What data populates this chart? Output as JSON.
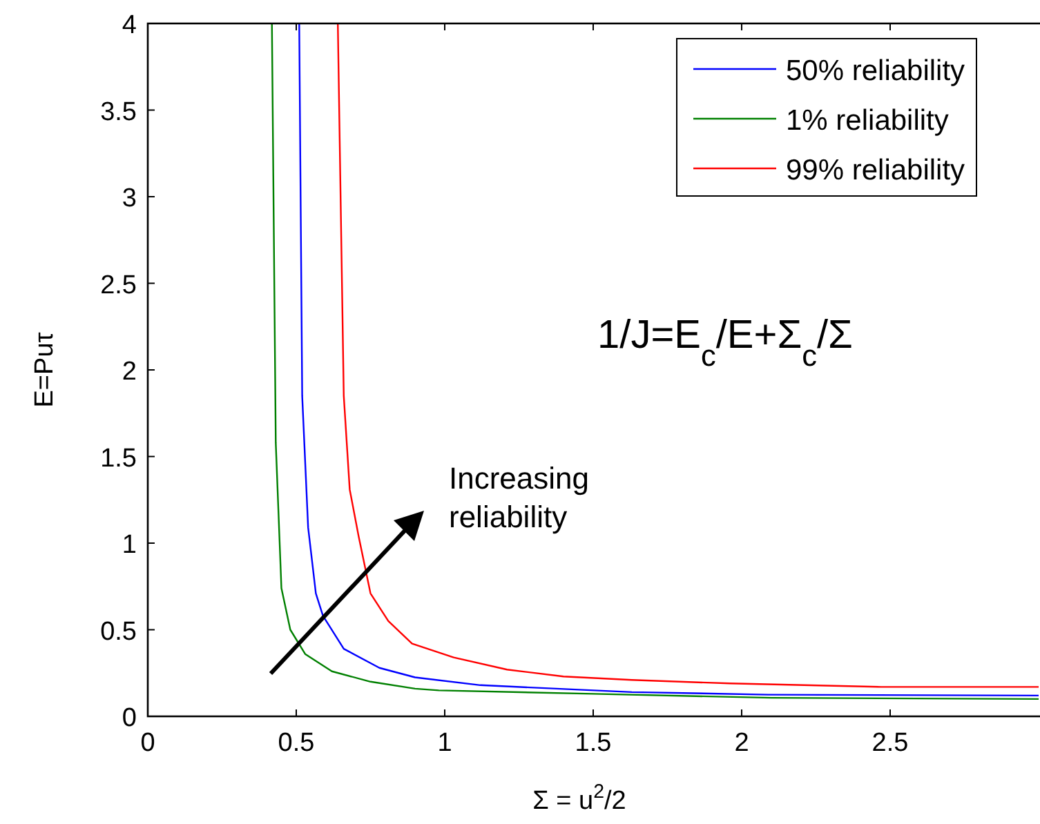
{
  "chart_data": {
    "type": "line",
    "xlabel": "Σ = u$^{2}$/2",
    "ylabel": "E=Puτ",
    "xlim": [
      0,
      3
    ],
    "ylim": [
      0,
      4
    ],
    "xticks": [
      0,
      0.5,
      1,
      1.5,
      2,
      2.5
    ],
    "yticks": [
      0,
      0.5,
      1,
      1.5,
      2,
      2.5,
      3,
      3.5,
      4
    ],
    "grid": false,
    "legend": "top right",
    "marker": "none",
    "line_style": "solid",
    "series": [
      {
        "name": "50% reliability",
        "color": "#0000ff",
        "x": [
          0.51,
          0.52,
          0.54,
          0.566,
          0.59,
          0.66,
          0.78,
          0.9,
          1.12,
          1.63,
          2.09,
          3
        ],
        "values": [
          4,
          1.85,
          1.09,
          0.71,
          0.58,
          0.39,
          0.28,
          0.225,
          0.18,
          0.14,
          0.125,
          0.12
        ]
      },
      {
        "name": "1% reliability",
        "color": "#008000",
        "x": [
          0.418,
          0.431,
          0.45,
          0.48,
          0.53,
          0.62,
          0.75,
          0.9,
          0.98,
          1.5,
          2.1,
          3
        ],
        "values": [
          4,
          1.58,
          0.74,
          0.5,
          0.36,
          0.26,
          0.2,
          0.16,
          0.15,
          0.13,
          0.107,
          0.1
        ]
      },
      {
        "name": "99% reliability",
        "color": "#ff0000",
        "x": [
          0.64,
          0.66,
          0.68,
          0.71,
          0.75,
          0.81,
          0.89,
          1.03,
          1.21,
          1.4,
          1.63,
          1.96,
          2.47,
          3
        ],
        "values": [
          4,
          1.85,
          1.31,
          1.04,
          0.71,
          0.55,
          0.42,
          0.34,
          0.27,
          0.23,
          0.21,
          0.19,
          0.17,
          0.17
        ]
      }
    ],
    "annotations": [
      "1/J=E$_{c}$/E+Σ$_{c}$/Σ",
      "Increasing reliability"
    ]
  }
}
